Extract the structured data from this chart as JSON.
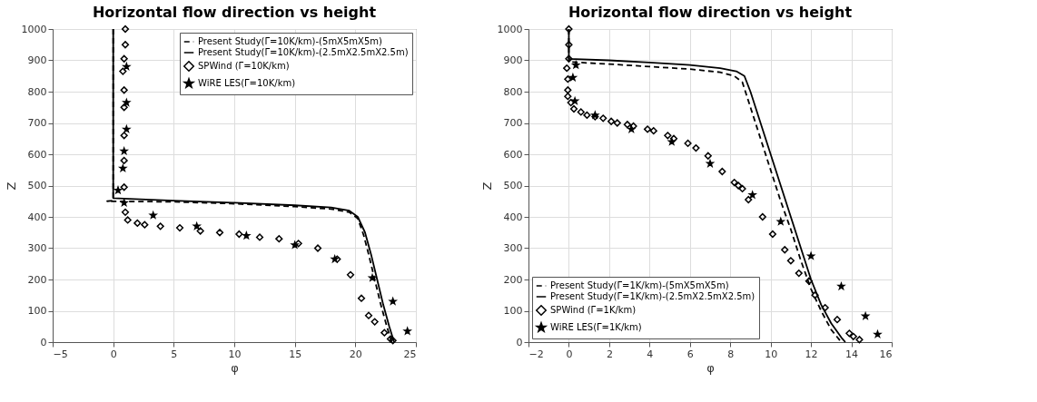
{
  "chart_data": [
    {
      "type": "line",
      "title": "Horizontal flow direction vs height",
      "xlabel": "φ",
      "ylabel": "Z",
      "xlim": [
        -5,
        25
      ],
      "xticks": [
        -5,
        0,
        5,
        10,
        15,
        20,
        25
      ],
      "ylim": [
        0,
        1000
      ],
      "yticks": [
        0,
        100,
        200,
        300,
        400,
        500,
        600,
        700,
        800,
        900,
        1000
      ],
      "grid": true,
      "legend": "top right",
      "series": [
        {
          "name": "Present Study(Γ=10K/km)-(5mX5mX5m)",
          "type": "line",
          "color": "#000000",
          "line_style": "dashed",
          "marker": "none",
          "x": [
            0,
            0,
            -0.5,
            5,
            10,
            15,
            18,
            19.5,
            20.2,
            20.7,
            21.1,
            21.6,
            22.1,
            22.6,
            23
          ],
          "values": [
            1000,
            452,
            450,
            448,
            442,
            433,
            425,
            415,
            395,
            340,
            280,
            200,
            120,
            50,
            0
          ]
        },
        {
          "name": "Present Study(Γ=10K/km)-(2.5mX2.5mX2.5m)",
          "type": "line",
          "color": "#000000",
          "line_style": "solid",
          "marker": "none",
          "x": [
            0,
            0,
            5,
            10,
            15,
            18,
            19.5,
            20.2,
            20.8,
            21.3,
            21.8,
            22.3,
            22.8,
            23.2
          ],
          "values": [
            1000,
            460,
            452,
            445,
            437,
            430,
            420,
            400,
            350,
            280,
            200,
            120,
            50,
            0
          ]
        },
        {
          "name": "SPWind (Γ=10K/km)",
          "type": "scatter",
          "color": "#000000",
          "marker": "diamond",
          "x": [
            1,
            1,
            0.9,
            0.8,
            0.9,
            0.9,
            0.9,
            0.9,
            0.9,
            1,
            1.2,
            2,
            2.6,
            3.9,
            5.5,
            7.2,
            8.8,
            10.4,
            12.1,
            13.7,
            15.3,
            16.9,
            18.5,
            19.6,
            20.5,
            21.1,
            21.6,
            22.4,
            22.9,
            23.1
          ],
          "values": [
            1000,
            950,
            905,
            865,
            805,
            750,
            660,
            580,
            495,
            415,
            390,
            380,
            375,
            370,
            365,
            355,
            350,
            345,
            335,
            330,
            315,
            300,
            265,
            215,
            140,
            85,
            65,
            30,
            10,
            5
          ]
        },
        {
          "name": "WiRE LES(Γ=10K/km)",
          "type": "scatter",
          "color": "#000000",
          "marker": "star",
          "x": [
            1.1,
            1.1,
            1.1,
            0.9,
            0.8,
            0.4,
            0.9,
            3.3,
            6.9,
            11,
            15,
            18.3,
            21.4,
            23.1,
            24.3
          ],
          "values": [
            880,
            765,
            680,
            610,
            555,
            485,
            445,
            405,
            370,
            340,
            310,
            265,
            205,
            130,
            35
          ]
        }
      ]
    },
    {
      "type": "line",
      "title": "Horizontal flow direction vs height",
      "xlabel": "φ",
      "ylabel": "Z",
      "xlim": [
        -2,
        16
      ],
      "xticks": [
        -2,
        0,
        2,
        4,
        6,
        8,
        10,
        12,
        14,
        16
      ],
      "ylim": [
        0,
        1000
      ],
      "yticks": [
        0,
        100,
        200,
        300,
        400,
        500,
        600,
        700,
        800,
        900,
        1000
      ],
      "grid": true,
      "legend": "bottom left",
      "series": [
        {
          "name": "Present Study(Γ=1K/km)-(5mX5mX5m)",
          "type": "line",
          "color": "#000000",
          "line_style": "dashed",
          "marker": "none",
          "x": [
            0,
            0,
            2,
            4,
            6,
            7.5,
            8.2,
            8.6,
            9,
            9.5,
            10,
            10.5,
            11,
            11.5,
            12,
            12.5,
            13,
            13.5
          ],
          "values": [
            1000,
            895,
            888,
            880,
            872,
            862,
            850,
            830,
            750,
            650,
            550,
            450,
            360,
            260,
            170,
            100,
            40,
            0
          ]
        },
        {
          "name": "Present Study(Γ=1K/km)-(2.5mX2.5mX2.5m)",
          "type": "line",
          "color": "#000000",
          "line_style": "solid",
          "marker": "none",
          "x": [
            0,
            0,
            2,
            4,
            6,
            7.5,
            8.3,
            8.7,
            9,
            9.5,
            10,
            10.5,
            11,
            11.5,
            12,
            12.5,
            13,
            13.5,
            13.7
          ],
          "values": [
            1000,
            905,
            900,
            893,
            885,
            875,
            865,
            850,
            800,
            700,
            600,
            500,
            400,
            300,
            200,
            120,
            60,
            15,
            0
          ]
        },
        {
          "name": "SPWind (Γ=1K/km)",
          "type": "scatter",
          "color": "#000000",
          "marker": "diamond",
          "x": [
            0,
            0,
            0,
            -0.1,
            -0.05,
            -0.05,
            -0.05,
            0.1,
            0.25,
            0.6,
            0.9,
            1.3,
            1.7,
            2.1,
            2.4,
            2.9,
            3.2,
            3.9,
            4.2,
            4.9,
            5.2,
            5.9,
            6.3,
            6.9,
            7.6,
            8.2,
            8.4,
            8.6,
            8.9,
            9.6,
            10.1,
            10.7,
            11,
            11.4,
            11.9,
            12.2,
            12.7,
            13.3,
            13.9,
            14.1,
            14.4
          ],
          "values": [
            1000,
            950,
            905,
            875,
            840,
            805,
            785,
            765,
            745,
            735,
            725,
            720,
            715,
            705,
            700,
            695,
            690,
            680,
            675,
            660,
            650,
            635,
            620,
            595,
            545,
            510,
            500,
            490,
            455,
            400,
            345,
            295,
            260,
            220,
            195,
            150,
            110,
            72,
            28,
            18,
            8
          ]
        },
        {
          "name": "WiRE LES(Γ=1K/km)",
          "type": "scatter",
          "color": "#000000",
          "marker": "star",
          "x": [
            0.35,
            0.2,
            0.3,
            1.3,
            3.1,
            5.1,
            7,
            9.1,
            10.5,
            12,
            13.5,
            14.7,
            15.3
          ],
          "values": [
            885,
            845,
            770,
            725,
            680,
            640,
            570,
            470,
            385,
            275,
            178,
            83,
            25
          ]
        }
      ]
    }
  ]
}
